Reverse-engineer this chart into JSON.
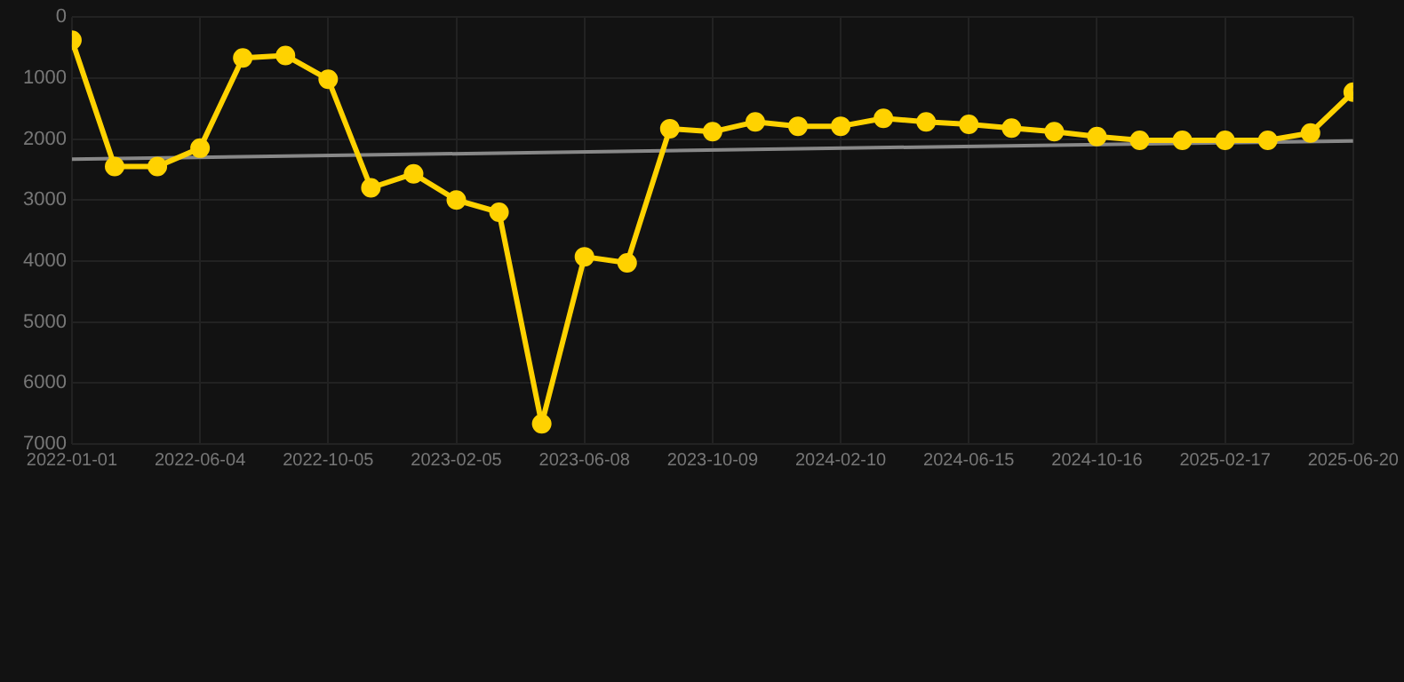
{
  "chart_data": {
    "type": "line",
    "categories": [
      "2022-01-01",
      null,
      null,
      "2022-06-04",
      null,
      null,
      "2022-10-05",
      null,
      null,
      "2023-02-05",
      null,
      null,
      "2023-06-08",
      null,
      null,
      "2023-10-09",
      null,
      null,
      "2024-02-10",
      null,
      null,
      "2024-06-15",
      null,
      null,
      "2024-10-16",
      null,
      null,
      "2025-02-17",
      null,
      null,
      "2025-06-20"
    ],
    "series": [
      {
        "color": "#ffd200",
        "values": [
          380,
          2450,
          2450,
          2150,
          670,
          630,
          1020,
          2800,
          2570,
          3000,
          3200,
          6670,
          3930,
          4030,
          1830,
          1880,
          1720,
          1790,
          1790,
          1660,
          1720,
          1760,
          1820,
          1880,
          1960,
          2020,
          2020,
          2020,
          2020,
          1900,
          1230
        ]
      },
      {
        "type": "line",
        "color": "#888888",
        "values": [
          2330,
          null,
          null,
          null,
          null,
          null,
          null,
          null,
          null,
          null,
          null,
          null,
          null,
          null,
          null,
          null,
          null,
          null,
          null,
          null,
          null,
          null,
          null,
          null,
          null,
          null,
          null,
          null,
          null,
          null,
          2030
        ],
        "marker": "none"
      }
    ],
    "ylim": [
      7000,
      0
    ],
    "yticks": [
      0,
      1000,
      2000,
      3000,
      4000,
      5000,
      6000,
      7000
    ],
    "grid": true,
    "marker": "circle",
    "line_style": "solid"
  }
}
